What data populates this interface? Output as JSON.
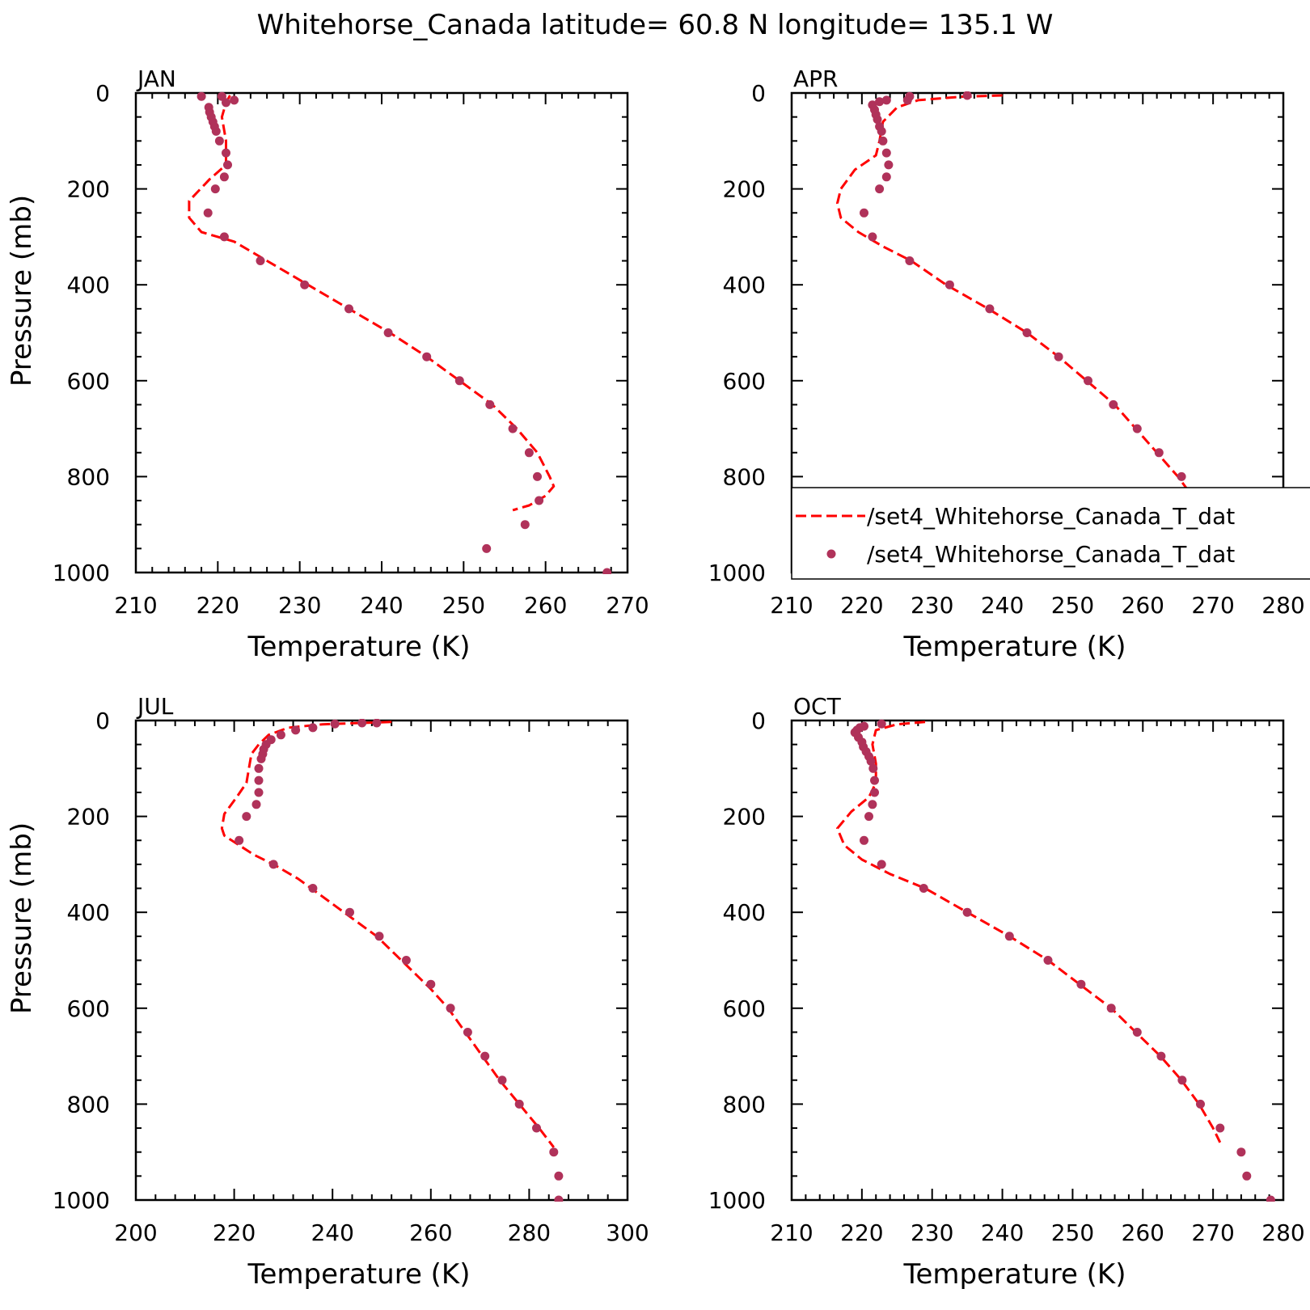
{
  "title": "Whitehorse_Canada  latitude= 60.8 N longitude= 135.1 W",
  "colors": {
    "line": "#ff0000",
    "dots": "#b0325a",
    "axis": "#000000"
  },
  "legend": {
    "line_label": "/set4_Whitehorse_Canada_T_dat",
    "dots_label": "/set4_Whitehorse_Canada_T_dat"
  },
  "chart_data": [
    {
      "type": "line",
      "panel_label": "JAN",
      "xlabel": "Temperature (K)",
      "ylabel": "Pressure (mb)",
      "xlim": [
        210,
        270
      ],
      "ylim": [
        1000,
        0
      ],
      "xticks": [
        210,
        220,
        230,
        240,
        250,
        260,
        270
      ],
      "yticks": [
        0,
        200,
        400,
        600,
        800,
        1000
      ],
      "series": [
        {
          "kind": "line-dashed",
          "points": [
            [
              221.5,
              5
            ],
            [
              221,
              20
            ],
            [
              220.5,
              50
            ],
            [
              221,
              100
            ],
            [
              221,
              150
            ],
            [
              219,
              180
            ],
            [
              216.5,
              225
            ],
            [
              216.5,
              260
            ],
            [
              218,
              290
            ],
            [
              222,
              310
            ],
            [
              226,
              350
            ],
            [
              231,
              400
            ],
            [
              236,
              450
            ],
            [
              241,
              500
            ],
            [
              245.5,
              550
            ],
            [
              249.5,
              600
            ],
            [
              253.5,
              650
            ],
            [
              256.5,
              700
            ],
            [
              259,
              750
            ],
            [
              260.5,
              800
            ],
            [
              261,
              820
            ],
            [
              260,
              840
            ],
            [
              258,
              860
            ],
            [
              256,
              870
            ]
          ]
        },
        {
          "kind": "scatter",
          "points": [
            [
              218,
              7
            ],
            [
              220.5,
              7
            ],
            [
              221,
              20
            ],
            [
              222,
              15
            ],
            [
              218.9,
              30
            ],
            [
              219,
              40
            ],
            [
              219.2,
              50
            ],
            [
              219.4,
              60
            ],
            [
              219.6,
              70
            ],
            [
              219.8,
              80
            ],
            [
              220.2,
              100
            ],
            [
              221,
              125
            ],
            [
              221.2,
              150
            ],
            [
              220.8,
              175
            ],
            [
              219.7,
              200
            ],
            [
              218.8,
              250
            ],
            [
              220.8,
              300
            ],
            [
              225.2,
              350
            ],
            [
              230.6,
              400
            ],
            [
              236,
              450
            ],
            [
              240.8,
              500
            ],
            [
              245.5,
              550
            ],
            [
              249.5,
              600
            ],
            [
              253.2,
              650
            ],
            [
              256,
              700
            ],
            [
              258,
              750
            ],
            [
              259,
              800
            ],
            [
              259.2,
              850
            ],
            [
              257.5,
              900
            ],
            [
              252.8,
              950
            ],
            [
              267.5,
              1000
            ]
          ]
        }
      ]
    },
    {
      "type": "line",
      "panel_label": "APR",
      "xlabel": "Temperature (K)",
      "ylabel": "",
      "xlim": [
        210,
        280
      ],
      "ylim": [
        1000,
        0
      ],
      "xticks": [
        210,
        220,
        230,
        240,
        250,
        260,
        270,
        280
      ],
      "yticks": [
        0,
        200,
        400,
        600,
        800,
        1000
      ],
      "series": [
        {
          "kind": "line-dashed",
          "points": [
            [
              240,
              5
            ],
            [
              234,
              8
            ],
            [
              228,
              15
            ],
            [
              225,
              30
            ],
            [
              223,
              60
            ],
            [
              222.5,
              100
            ],
            [
              222,
              130
            ],
            [
              219,
              160
            ],
            [
              217,
              200
            ],
            [
              216.5,
              230
            ],
            [
              217,
              260
            ],
            [
              219.5,
              290
            ],
            [
              223,
              320
            ],
            [
              227,
              350
            ],
            [
              232,
              400
            ],
            [
              238,
              450
            ],
            [
              243.5,
              500
            ],
            [
              248,
              550
            ],
            [
              252,
              600
            ],
            [
              256,
              650
            ],
            [
              259,
              700
            ],
            [
              262,
              750
            ],
            [
              265,
              800
            ],
            [
              267.5,
              850
            ],
            [
              270,
              880
            ]
          ]
        },
        {
          "kind": "scatter",
          "points": [
            [
              235,
              5
            ],
            [
              226.8,
              7
            ],
            [
              223.5,
              15
            ],
            [
              226.5,
              15
            ],
            [
              222.5,
              18
            ],
            [
              221.5,
              25
            ],
            [
              221.8,
              35
            ],
            [
              222,
              45
            ],
            [
              222.2,
              55
            ],
            [
              222.5,
              70
            ],
            [
              222.8,
              80
            ],
            [
              223,
              100
            ],
            [
              223.5,
              125
            ],
            [
              223.8,
              150
            ],
            [
              223.5,
              175
            ],
            [
              222.5,
              200
            ],
            [
              220.3,
              250
            ],
            [
              221.5,
              300
            ],
            [
              226.8,
              350
            ],
            [
              232.5,
              400
            ],
            [
              238.2,
              450
            ],
            [
              243.5,
              500
            ],
            [
              248,
              550
            ],
            [
              252.2,
              600
            ],
            [
              255.8,
              650
            ],
            [
              259.2,
              700
            ],
            [
              262.3,
              750
            ],
            [
              265.5,
              800
            ],
            [
              269,
              850
            ],
            [
              272.8,
              900
            ],
            [
              272.8,
              950
            ],
            [
              276.3,
              1000
            ]
          ]
        }
      ]
    },
    {
      "type": "line",
      "panel_label": "JUL",
      "xlabel": "Temperature (K)",
      "ylabel": "Pressure (mb)",
      "xlim": [
        200,
        300
      ],
      "ylim": [
        1000,
        0
      ],
      "xticks": [
        200,
        220,
        240,
        260,
        280,
        300
      ],
      "yticks": [
        0,
        200,
        400,
        600,
        800,
        1000
      ],
      "series": [
        {
          "kind": "line-dashed",
          "points": [
            [
              252,
              3
            ],
            [
              246,
              5
            ],
            [
              238,
              8
            ],
            [
              231,
              15
            ],
            [
              227,
              30
            ],
            [
              225,
              50
            ],
            [
              223.5,
              70
            ],
            [
              223,
              100
            ],
            [
              222.5,
              130
            ],
            [
              220.5,
              160
            ],
            [
              218,
              195
            ],
            [
              217.5,
              225
            ],
            [
              218,
              240
            ],
            [
              221,
              260
            ],
            [
              224,
              280
            ],
            [
              228,
              300
            ],
            [
              233,
              330
            ],
            [
              237,
              360
            ],
            [
              241,
              390
            ],
            [
              245,
              420
            ],
            [
              249,
              450
            ],
            [
              253,
              490
            ],
            [
              257,
              530
            ],
            [
              260,
              560
            ],
            [
              263.5,
              600
            ],
            [
              267,
              650
            ],
            [
              270.5,
              700
            ],
            [
              274,
              750
            ],
            [
              278,
              800
            ],
            [
              282,
              850
            ],
            [
              285,
              890
            ]
          ]
        },
        {
          "kind": "scatter",
          "points": [
            [
              249,
              5
            ],
            [
              246,
              5
            ],
            [
              240.5,
              7
            ],
            [
              236,
              15
            ],
            [
              232.5,
              20
            ],
            [
              229.5,
              30
            ],
            [
              227.5,
              40
            ],
            [
              226.5,
              50
            ],
            [
              226,
              60
            ],
            [
              225.8,
              70
            ],
            [
              225.5,
              80
            ],
            [
              225,
              100
            ],
            [
              225,
              125
            ],
            [
              225,
              150
            ],
            [
              224.5,
              175
            ],
            [
              222.5,
              200
            ],
            [
              221,
              250
            ],
            [
              228,
              300
            ],
            [
              236,
              350
            ],
            [
              243.5,
              400
            ],
            [
              249.5,
              450
            ],
            [
              255,
              500
            ],
            [
              260,
              550
            ],
            [
              264,
              600
            ],
            [
              267.5,
              650
            ],
            [
              271,
              700
            ],
            [
              274.5,
              750
            ],
            [
              278,
              800
            ],
            [
              281.5,
              850
            ],
            [
              285,
              900
            ],
            [
              286,
              950
            ],
            [
              286,
              1000
            ]
          ]
        }
      ]
    },
    {
      "type": "line",
      "panel_label": "OCT",
      "xlabel": "Temperature (K)",
      "ylabel": "",
      "xlim": [
        210,
        280
      ],
      "ylim": [
        1000,
        0
      ],
      "xticks": [
        210,
        220,
        230,
        240,
        250,
        260,
        270,
        280
      ],
      "yticks": [
        0,
        200,
        400,
        600,
        800,
        1000
      ],
      "series": [
        {
          "kind": "line-dashed",
          "points": [
            [
              229,
              3
            ],
            [
              225,
              8
            ],
            [
              222,
              20
            ],
            [
              221.5,
              50
            ],
            [
              222,
              90
            ],
            [
              222,
              130
            ],
            [
              221,
              160
            ],
            [
              218.5,
              190
            ],
            [
              216.5,
              225
            ],
            [
              217.5,
              260
            ],
            [
              220,
              290
            ],
            [
              224,
              320
            ],
            [
              229,
              350
            ],
            [
              235,
              400
            ],
            [
              241,
              450
            ],
            [
              246.5,
              500
            ],
            [
              251,
              550
            ],
            [
              255.5,
              600
            ],
            [
              259,
              650
            ],
            [
              262.5,
              700
            ],
            [
              265.5,
              750
            ],
            [
              268,
              800
            ],
            [
              270,
              850
            ],
            [
              271,
              880
            ]
          ]
        },
        {
          "kind": "scatter",
          "points": [
            [
              222.8,
              7
            ],
            [
              220.3,
              12
            ],
            [
              219.7,
              15
            ],
            [
              219.3,
              20
            ],
            [
              219,
              25
            ],
            [
              219.5,
              35
            ],
            [
              220,
              45
            ],
            [
              220.2,
              55
            ],
            [
              220.6,
              65
            ],
            [
              221,
              75
            ],
            [
              221.3,
              85
            ],
            [
              221.6,
              100
            ],
            [
              221.8,
              125
            ],
            [
              221.8,
              150
            ],
            [
              221.5,
              175
            ],
            [
              221,
              200
            ],
            [
              220.3,
              250
            ],
            [
              222.8,
              300
            ],
            [
              228.8,
              350
            ],
            [
              235,
              400
            ],
            [
              241,
              450
            ],
            [
              246.5,
              500
            ],
            [
              251.2,
              550
            ],
            [
              255.5,
              600
            ],
            [
              259.2,
              650
            ],
            [
              262.6,
              700
            ],
            [
              265.6,
              750
            ],
            [
              268.2,
              800
            ],
            [
              271,
              850
            ],
            [
              274,
              900
            ],
            [
              274.8,
              950
            ],
            [
              278.2,
              1000
            ]
          ]
        }
      ]
    }
  ]
}
